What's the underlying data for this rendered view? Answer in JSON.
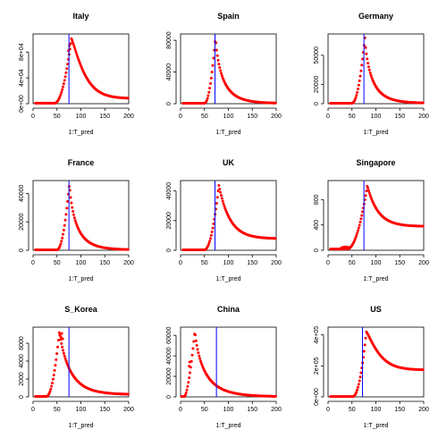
{
  "figure": {
    "xlabel": "1:T_pred"
  },
  "colors": {
    "points": "#ff0000",
    "vline": "#0000ff",
    "axes": "#000000"
  },
  "chart_data": [
    {
      "type": "scatter",
      "title": "Italy",
      "xlabel": "1:T_pred",
      "ylabel": "",
      "xlim": [
        0,
        200
      ],
      "ylim": [
        0,
        108000
      ],
      "vline": 75,
      "xticks": [
        0,
        50,
        100,
        150,
        200
      ],
      "xtick_labels": [
        "0",
        "50",
        "100",
        "150",
        "200"
      ],
      "yticks": [
        0,
        40000,
        80000
      ],
      "ytick_labels": [
        "0e+00",
        "4e+04",
        "8e+04"
      ],
      "curve": {
        "x0": 5,
        "rise_start": 45,
        "peak_x": 80,
        "peak_y": 101000,
        "base": 800,
        "end_y": 8500,
        "rise_shape": 2.0,
        "decay_shape": 1.2
      },
      "extra_points": [
        {
          "x": 74,
          "y": 82000
        },
        {
          "x": 76,
          "y": 90000
        }
      ]
    },
    {
      "type": "scatter",
      "title": "Spain",
      "xlabel": "1:T_pred",
      "ylabel": "",
      "xlim": [
        0,
        200
      ],
      "ylim": [
        0,
        88000
      ],
      "vline": 72,
      "xticks": [
        0,
        50,
        100,
        150,
        200
      ],
      "xtick_labels": [
        "0",
        "50",
        "100",
        "150",
        "200"
      ],
      "yticks": [
        0,
        40000,
        80000
      ],
      "ytick_labels": [
        "0",
        "40000",
        "80000"
      ],
      "curve": {
        "x0": 5,
        "rise_start": 50,
        "peak_x": 73,
        "peak_y": 84000,
        "base": 500,
        "end_y": 800,
        "rise_shape": 2.0,
        "decay_shape": 0.8
      },
      "extra_points": []
    },
    {
      "type": "scatter",
      "title": "Germany",
      "xlabel": "1:T_pred",
      "ylabel": "",
      "xlim": [
        0,
        200
      ],
      "ylim": [
        0,
        72000
      ],
      "vline": 75,
      "xticks": [
        0,
        50,
        100,
        150,
        200
      ],
      "xtick_labels": [
        "0",
        "50",
        "100",
        "150",
        "200"
      ],
      "yticks": [
        0,
        20000,
        50000
      ],
      "ytick_labels": [
        "0",
        "20000",
        "50000"
      ],
      "curve": {
        "x0": 5,
        "rise_start": 50,
        "peak_x": 77,
        "peak_y": 68000,
        "base": 500,
        "end_y": 800,
        "rise_shape": 2.0,
        "decay_shape": 0.8
      },
      "extra_points": []
    },
    {
      "type": "scatter",
      "title": "France",
      "xlabel": "1:T_pred",
      "ylabel": "",
      "xlim": [
        0,
        200
      ],
      "ylim": [
        0,
        49000
      ],
      "vline": 75,
      "xticks": [
        0,
        50,
        100,
        150,
        200
      ],
      "xtick_labels": [
        "0",
        "50",
        "100",
        "150",
        "200"
      ],
      "yticks": [
        0,
        20000,
        40000
      ],
      "ytick_labels": [
        "0",
        "20000",
        "40000"
      ],
      "curve": {
        "x0": 5,
        "rise_start": 50,
        "peak_x": 76,
        "peak_y": 47000,
        "base": 300,
        "end_y": 500,
        "rise_shape": 2.0,
        "decay_shape": 0.8
      },
      "extra_points": []
    },
    {
      "type": "scatter",
      "title": "UK",
      "xlabel": "1:T_pred",
      "ylabel": "",
      "xlim": [
        0,
        200
      ],
      "ylim": [
        0,
        47000
      ],
      "vline": 72,
      "xticks": [
        0,
        50,
        100,
        150,
        200
      ],
      "xtick_labels": [
        "0",
        "50",
        "100",
        "150",
        "200"
      ],
      "yticks": [
        0,
        20000,
        40000
      ],
      "ytick_labels": [
        "0",
        "20000",
        "40000"
      ],
      "curve": {
        "x0": 5,
        "rise_start": 50,
        "peak_x": 80,
        "peak_y": 44000,
        "base": 300,
        "end_y": 8000,
        "rise_shape": 2.0,
        "decay_shape": 1.0
      },
      "extra_points": []
    },
    {
      "type": "scatter",
      "title": "Singapore",
      "xlabel": "1:T_pred",
      "ylabel": "",
      "xlim": [
        0,
        200
      ],
      "ylim": [
        0,
        1100
      ],
      "vline": 75,
      "xticks": [
        0,
        50,
        100,
        150,
        200
      ],
      "xtick_labels": [
        "0",
        "50",
        "100",
        "150",
        "200"
      ],
      "yticks": [
        0,
        400,
        800
      ],
      "ytick_labels": [
        "0",
        "400",
        "800"
      ],
      "curve": {
        "x0": 5,
        "rise_start": 40,
        "peak_x": 82,
        "peak_y": 1020,
        "base": 20,
        "end_y": 380,
        "rise_shape": 2.0,
        "decay_shape": 1.0
      },
      "extra_points": [
        {
          "x": 28,
          "y": 40
        },
        {
          "x": 32,
          "y": 50
        },
        {
          "x": 36,
          "y": 55
        },
        {
          "x": 40,
          "y": 50
        },
        {
          "x": 44,
          "y": 45
        }
      ]
    },
    {
      "type": "scatter",
      "title": "S_Korea",
      "xlabel": "1:T_pred",
      "ylabel": "",
      "xlim": [
        0,
        200
      ],
      "ylim": [
        0,
        7800
      ],
      "vline": 75,
      "xticks": [
        0,
        50,
        100,
        150,
        200
      ],
      "xtick_labels": [
        "0",
        "50",
        "100",
        "150",
        "200"
      ],
      "yticks": [
        0,
        2000,
        4000,
        6000
      ],
      "ytick_labels": [
        "0",
        "2000",
        "4000",
        "6000"
      ],
      "curve": {
        "x0": 5,
        "rise_start": 28,
        "peak_x": 55,
        "peak_y": 7400,
        "base": 50,
        "end_y": 300,
        "rise_shape": 2.0,
        "decay_shape": 0.9
      },
      "extra_points": [
        {
          "x": 56,
          "y": 6900
        },
        {
          "x": 58,
          "y": 6700
        },
        {
          "x": 60,
          "y": 7100
        },
        {
          "x": 62,
          "y": 6500
        }
      ]
    },
    {
      "type": "scatter",
      "title": "China",
      "xlabel": "1:T_pred",
      "ylabel": "",
      "xlim": [
        0,
        200
      ],
      "ylim": [
        0,
        68000
      ],
      "vline": 75,
      "xticks": [
        0,
        50,
        100,
        150,
        200
      ],
      "xtick_labels": [
        "0",
        "50",
        "100",
        "150",
        "200"
      ],
      "yticks": [
        0,
        20000,
        40000,
        60000
      ],
      "ytick_labels": [
        "0",
        "20000",
        "40000",
        "60000"
      ],
      "curve": {
        "x0": 2,
        "rise_start": 8,
        "peak_x": 30,
        "peak_y": 65000,
        "base": 300,
        "end_y": 500,
        "rise_shape": 1.6,
        "decay_shape": 0.8
      },
      "extra_points": [
        {
          "x": 18,
          "y": 30000
        },
        {
          "x": 19,
          "y": 34000
        }
      ]
    },
    {
      "type": "scatter",
      "title": "US",
      "xlabel": "1:T_pred",
      "ylabel": "",
      "xlim": [
        0,
        200
      ],
      "ylim": [
        0,
        450000
      ],
      "vline": 72,
      "xticks": [
        0,
        50,
        100,
        150,
        200
      ],
      "xtick_labels": [
        "0",
        "50",
        "100",
        "150",
        "200"
      ],
      "yticks": [
        0,
        200000,
        400000
      ],
      "ytick_labels": [
        "0e+00",
        "2e+05",
        "4e+05"
      ],
      "curve": {
        "x0": 5,
        "rise_start": 52,
        "peak_x": 80,
        "peak_y": 420000,
        "base": 2000,
        "end_y": 175000,
        "rise_shape": 2.0,
        "decay_shape": 1.2
      },
      "extra_points": []
    }
  ]
}
